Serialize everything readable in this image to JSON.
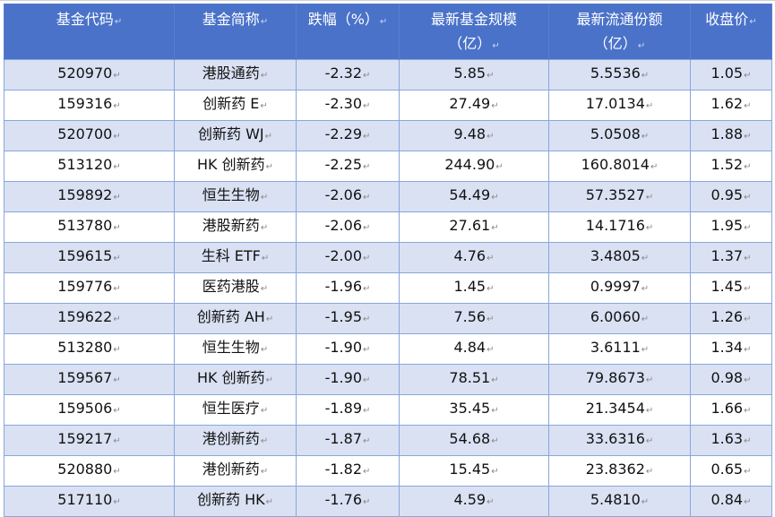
{
  "header": {
    "code": "基金代码",
    "name": "基金简称",
    "change": "跌幅（%）",
    "scale_line1": "最新基金规模",
    "scale_line2": "（亿）",
    "shares_line1": "最新流通份额",
    "shares_line2": "（亿）",
    "close": "收盘价"
  },
  "paragraph_mark": "↵",
  "rows": [
    {
      "code": "520970",
      "name": "港股通药",
      "change": "-2.32",
      "scale": "5.85",
      "shares": "5.5536",
      "close": "1.05"
    },
    {
      "code": "159316",
      "name": "创新药 E",
      "change": "-2.30",
      "scale": "27.49",
      "shares": "17.0134",
      "close": "1.62"
    },
    {
      "code": "520700",
      "name": "创新药 WJ",
      "change": "-2.29",
      "scale": "9.48",
      "shares": "5.0508",
      "close": "1.88"
    },
    {
      "code": "513120",
      "name": "HK 创新药",
      "change": "-2.25",
      "scale": "244.90",
      "shares": "160.8014",
      "close": "1.52"
    },
    {
      "code": "159892",
      "name": "恒生生物",
      "change": "-2.06",
      "scale": "54.49",
      "shares": "57.3527",
      "close": "0.95"
    },
    {
      "code": "513780",
      "name": "港股新药",
      "change": "-2.06",
      "scale": "27.61",
      "shares": "14.1716",
      "close": "1.95"
    },
    {
      "code": "159615",
      "name": "生科 ETF",
      "change": "-2.00",
      "scale": "4.76",
      "shares": "3.4805",
      "close": "1.37"
    },
    {
      "code": "159776",
      "name": "医药港股",
      "change": "-1.96",
      "scale": "1.45",
      "shares": "0.9997",
      "close": "1.45"
    },
    {
      "code": "159622",
      "name": "创新药 AH",
      "change": "-1.95",
      "scale": "7.56",
      "shares": "6.0060",
      "close": "1.26"
    },
    {
      "code": "513280",
      "name": "恒生生物",
      "change": "-1.90",
      "scale": "4.84",
      "shares": "3.6111",
      "close": "1.34"
    },
    {
      "code": "159567",
      "name": "HK 创新药",
      "change": "-1.90",
      "scale": "78.51",
      "shares": "79.8673",
      "close": "0.98"
    },
    {
      "code": "159506",
      "name": "恒生医疗",
      "change": "-1.89",
      "scale": "35.45",
      "shares": "21.3454",
      "close": "1.66"
    },
    {
      "code": "159217",
      "name": "港创新药",
      "change": "-1.87",
      "scale": "54.68",
      "shares": "33.6316",
      "close": "1.63"
    },
    {
      "code": "520880",
      "name": "港创新药",
      "change": "-1.82",
      "scale": "15.45",
      "shares": "23.8362",
      "close": "0.65"
    },
    {
      "code": "517110",
      "name": "创新药 HK",
      "change": "-1.76",
      "scale": "4.59",
      "shares": "5.4810",
      "close": "0.84"
    }
  ]
}
